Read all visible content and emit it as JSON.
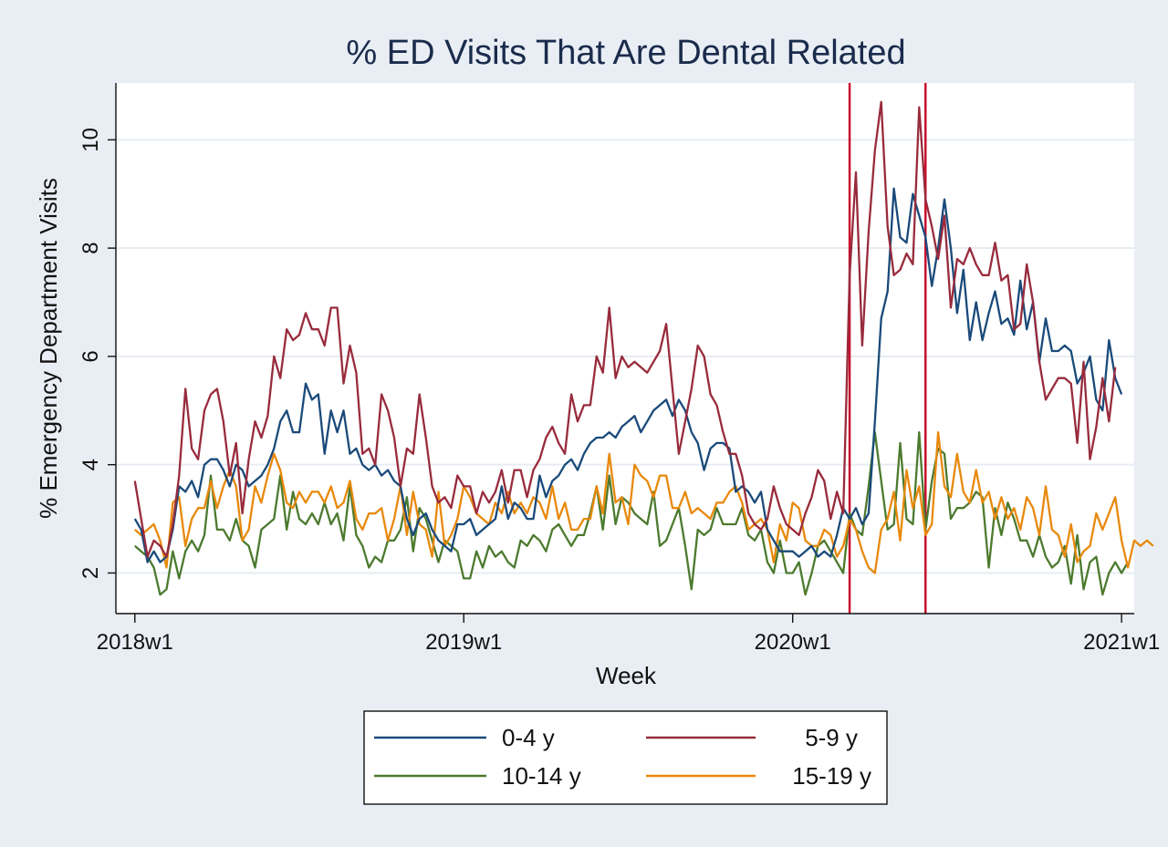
{
  "chart_data": {
    "type": "line",
    "title": "% ED Visits That Are Dental Related",
    "xlabel": "Week",
    "ylabel": "% Emergency Department Visits",
    "x_ticks": [
      {
        "label": "2018w1",
        "value": 0
      },
      {
        "label": "2019w1",
        "value": 52
      },
      {
        "label": "2020w1",
        "value": 104
      },
      {
        "label": "2021w1",
        "value": 156
      }
    ],
    "y_ticks": [
      2,
      4,
      6,
      8,
      10
    ],
    "xlim": [
      -3,
      158
    ],
    "ylim": [
      1.25,
      11.05
    ],
    "grid": true,
    "legend_position": "bottom",
    "reference_lines_x": [
      113,
      125
    ],
    "colors": {
      "series_0_4": "#1a4a7a",
      "series_5_9": "#982b3c",
      "series_10_14": "#4c7a2e",
      "series_15_19": "#e8890c",
      "reference": "#c8102e",
      "plot_bg": "#ffffff",
      "outer_bg": "#e9eef4",
      "grid": "#e6ecf2"
    },
    "series": [
      {
        "name": "0-4 y",
        "color": "#1a4a7a",
        "values": [
          3.0,
          2.8,
          2.2,
          2.4,
          2.2,
          2.3,
          2.8,
          3.6,
          3.5,
          3.7,
          3.4,
          4.0,
          4.1,
          4.1,
          3.9,
          3.6,
          4.0,
          3.9,
          3.6,
          3.7,
          3.8,
          4.0,
          4.3,
          4.8,
          5.0,
          4.6,
          4.6,
          5.5,
          5.2,
          5.3,
          4.2,
          5.0,
          4.6,
          5.0,
          4.2,
          4.3,
          4.0,
          3.9,
          4.0,
          3.8,
          3.9,
          3.7,
          3.6,
          3.0,
          2.7,
          3.0,
          3.1,
          2.8,
          2.6,
          2.5,
          2.4,
          2.9,
          2.9,
          3.0,
          2.7,
          2.8,
          2.9,
          3.0,
          3.6,
          3.0,
          3.3,
          3.2,
          3.0,
          3.0,
          3.8,
          3.4,
          3.7,
          3.8,
          4.0,
          4.1,
          3.9,
          4.2,
          4.4,
          4.5,
          4.5,
          4.6,
          4.5,
          4.7,
          4.8,
          4.9,
          4.6,
          4.8,
          5.0,
          5.1,
          5.2,
          4.9,
          5.2,
          5.0,
          4.6,
          4.4,
          3.9,
          4.3,
          4.4,
          4.4,
          4.3,
          3.5,
          3.6,
          3.5,
          3.3,
          3.5,
          2.8,
          2.6,
          2.4,
          2.4,
          2.4,
          2.3,
          2.4,
          2.5,
          2.3,
          2.4,
          2.3,
          2.7,
          3.2,
          3.0,
          3.2,
          2.9,
          3.1,
          4.8,
          6.7,
          7.2,
          9.1,
          8.2,
          8.1,
          9.0,
          8.6,
          8.2,
          7.3,
          8.0,
          8.9,
          8.0,
          6.8,
          7.6,
          6.3,
          7.0,
          6.3,
          6.8,
          7.2,
          6.6,
          6.7,
          6.4,
          7.4,
          6.5,
          7.0,
          5.9,
          6.7,
          6.1,
          6.1,
          6.2,
          6.1,
          5.5,
          5.7,
          6.0,
          5.2,
          5.0,
          6.3,
          5.6,
          5.3
        ]
      },
      {
        "name": "5-9 y",
        "color": "#982b3c",
        "values": [
          3.7,
          3.0,
          2.3,
          2.6,
          2.5,
          2.3,
          2.9,
          3.8,
          5.4,
          4.3,
          4.1,
          5.0,
          5.3,
          5.4,
          4.8,
          3.8,
          4.4,
          3.1,
          4.1,
          4.8,
          4.5,
          4.9,
          6.0,
          5.6,
          6.5,
          6.3,
          6.4,
          6.8,
          6.5,
          6.5,
          6.2,
          6.9,
          6.9,
          5.5,
          6.2,
          5.7,
          4.2,
          4.3,
          4.0,
          5.3,
          5.0,
          4.5,
          3.6,
          4.3,
          4.2,
          5.3,
          4.5,
          3.6,
          3.3,
          3.4,
          3.2,
          3.8,
          3.6,
          3.6,
          3.1,
          3.5,
          3.3,
          3.5,
          3.9,
          3.3,
          3.9,
          3.9,
          3.4,
          3.9,
          4.1,
          4.5,
          4.7,
          4.4,
          4.2,
          5.3,
          4.8,
          5.1,
          5.1,
          6.0,
          5.7,
          6.9,
          5.6,
          6.0,
          5.8,
          5.9,
          5.8,
          5.7,
          5.9,
          6.1,
          6.6,
          5.4,
          4.2,
          4.8,
          5.4,
          6.2,
          6.0,
          5.3,
          5.1,
          4.6,
          4.2,
          4.2,
          3.8,
          3.1,
          2.9,
          2.8,
          3.0,
          3.6,
          3.2,
          2.9,
          2.8,
          2.7,
          3.1,
          3.4,
          3.9,
          3.7,
          3.0,
          3.5,
          3.1,
          7.5,
          9.4,
          6.2,
          8.3,
          9.8,
          10.7,
          8.4,
          7.5,
          7.6,
          7.9,
          7.7,
          10.6,
          8.9,
          8.4,
          7.8,
          8.6,
          6.9,
          7.8,
          7.7,
          8.0,
          7.7,
          7.5,
          7.5,
          8.1,
          7.4,
          7.5,
          6.5,
          6.6,
          7.7,
          7.0,
          5.9,
          5.2,
          5.4,
          5.6,
          5.6,
          5.5,
          4.4,
          5.9,
          4.1,
          4.7,
          5.6,
          4.8,
          5.8
        ]
      },
      {
        "name": "10-14 y",
        "color": "#4c7a2e",
        "values": [
          2.5,
          2.4,
          2.3,
          2.1,
          1.6,
          1.7,
          2.4,
          1.9,
          2.4,
          2.6,
          2.4,
          2.7,
          3.8,
          2.8,
          2.8,
          2.6,
          3.0,
          2.6,
          2.5,
          2.1,
          2.8,
          2.9,
          3.0,
          3.8,
          2.8,
          3.5,
          3.0,
          2.9,
          3.1,
          2.9,
          3.3,
          2.9,
          3.1,
          2.6,
          3.6,
          2.7,
          2.5,
          2.1,
          2.3,
          2.2,
          2.6,
          2.6,
          2.8,
          3.4,
          2.4,
          3.2,
          3.0,
          2.6,
          2.2,
          2.6,
          2.5,
          2.4,
          1.9,
          1.9,
          2.4,
          2.1,
          2.5,
          2.3,
          2.4,
          2.2,
          2.1,
          2.6,
          2.5,
          2.7,
          2.6,
          2.4,
          2.8,
          2.9,
          2.7,
          2.5,
          2.7,
          2.7,
          3.1,
          3.6,
          2.8,
          3.8,
          2.9,
          3.4,
          3.3,
          3.1,
          3.0,
          2.9,
          3.5,
          2.5,
          2.6,
          2.9,
          3.2,
          2.5,
          1.7,
          2.8,
          2.7,
          2.8,
          3.2,
          2.9,
          2.9,
          2.9,
          3.2,
          2.7,
          2.6,
          2.8,
          2.2,
          2.0,
          2.6,
          2.0,
          2.0,
          2.2,
          1.6,
          2.0,
          2.5,
          2.6,
          2.4,
          2.2,
          2.0,
          3.1,
          2.8,
          2.7,
          3.6,
          4.6,
          3.7,
          2.8,
          2.9,
          4.4,
          3.0,
          2.9,
          4.6,
          2.8,
          3.7,
          4.3,
          4.2,
          3.0,
          3.2,
          3.2,
          3.3,
          3.5,
          3.4,
          2.1,
          3.2,
          2.7,
          3.3,
          3.0,
          2.6,
          2.6,
          2.3,
          2.7,
          2.3,
          2.1,
          2.2,
          2.5,
          1.8,
          2.7,
          1.7,
          2.2,
          2.3,
          1.6,
          2.0,
          2.2,
          2.0,
          2.2
        ]
      },
      {
        "name": "15-19 y",
        "color": "#e8890c",
        "values": [
          2.8,
          2.7,
          2.8,
          2.9,
          2.6,
          2.1,
          3.3,
          3.4,
          2.5,
          3.0,
          3.2,
          3.2,
          3.7,
          3.2,
          3.6,
          3.9,
          3.6,
          2.6,
          2.8,
          3.6,
          3.3,
          3.8,
          4.2,
          3.9,
          3.3,
          3.2,
          3.5,
          3.3,
          3.5,
          3.5,
          3.3,
          3.6,
          3.2,
          3.3,
          3.7,
          3.0,
          2.8,
          3.1,
          3.1,
          3.2,
          2.6,
          3.0,
          3.6,
          2.7,
          3.5,
          2.9,
          2.8,
          2.3,
          3.5,
          2.5,
          2.7,
          3.0,
          3.6,
          3.4,
          3.1,
          3.0,
          2.9,
          3.3,
          3.1,
          3.5,
          3.1,
          3.3,
          3.1,
          3.4,
          3.3,
          3.0,
          3.6,
          3.0,
          3.3,
          2.8,
          2.8,
          3.0,
          3.0,
          3.6,
          3.1,
          4.2,
          3.3,
          3.4,
          2.9,
          4.0,
          3.8,
          3.7,
          3.4,
          3.8,
          3.8,
          3.2,
          3.2,
          3.5,
          3.1,
          3.2,
          3.1,
          3.0,
          3.3,
          3.3,
          3.5,
          3.6,
          3.3,
          2.8,
          2.9,
          3.0,
          2.8,
          2.2,
          2.9,
          2.6,
          3.3,
          3.2,
          2.6,
          2.5,
          2.5,
          2.8,
          2.7,
          2.3,
          2.5,
          3.0,
          2.8,
          2.4,
          2.1,
          2.0,
          2.8,
          3.0,
          3.5,
          2.6,
          3.9,
          3.2,
          3.6,
          2.7,
          2.9,
          4.6,
          3.6,
          3.4,
          4.2,
          3.5,
          3.3,
          3.9,
          3.3,
          3.5,
          3.0,
          3.4,
          3.0,
          3.2,
          2.8,
          3.4,
          3.2,
          2.7,
          3.6,
          2.8,
          2.7,
          2.3,
          2.9,
          2.2,
          2.4,
          2.5,
          3.1,
          2.8,
          3.1,
          3.4,
          2.6,
          2.1,
          2.6,
          2.5,
          2.6,
          2.5
        ]
      }
    ]
  }
}
